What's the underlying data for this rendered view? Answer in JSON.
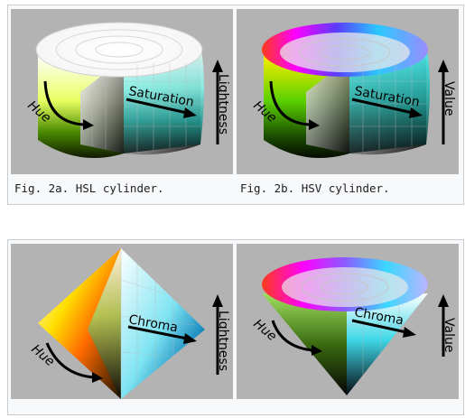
{
  "figures": [
    {
      "caption": "Fig. 2a. HSL cylinder.",
      "labels": {
        "hue": "Hue",
        "radial": "Saturation",
        "vertical": "Lightness"
      }
    },
    {
      "caption": "Fig. 2b. HSV cylinder.",
      "labels": {
        "hue": "Hue",
        "radial": "Saturation",
        "vertical": "Value"
      }
    },
    {
      "labels": {
        "hue": "Hue",
        "radial": "Chroma",
        "vertical": "Lightness"
      }
    },
    {
      "labels": {
        "hue": "Hue",
        "radial": "Chroma",
        "vertical": "Value"
      }
    }
  ]
}
